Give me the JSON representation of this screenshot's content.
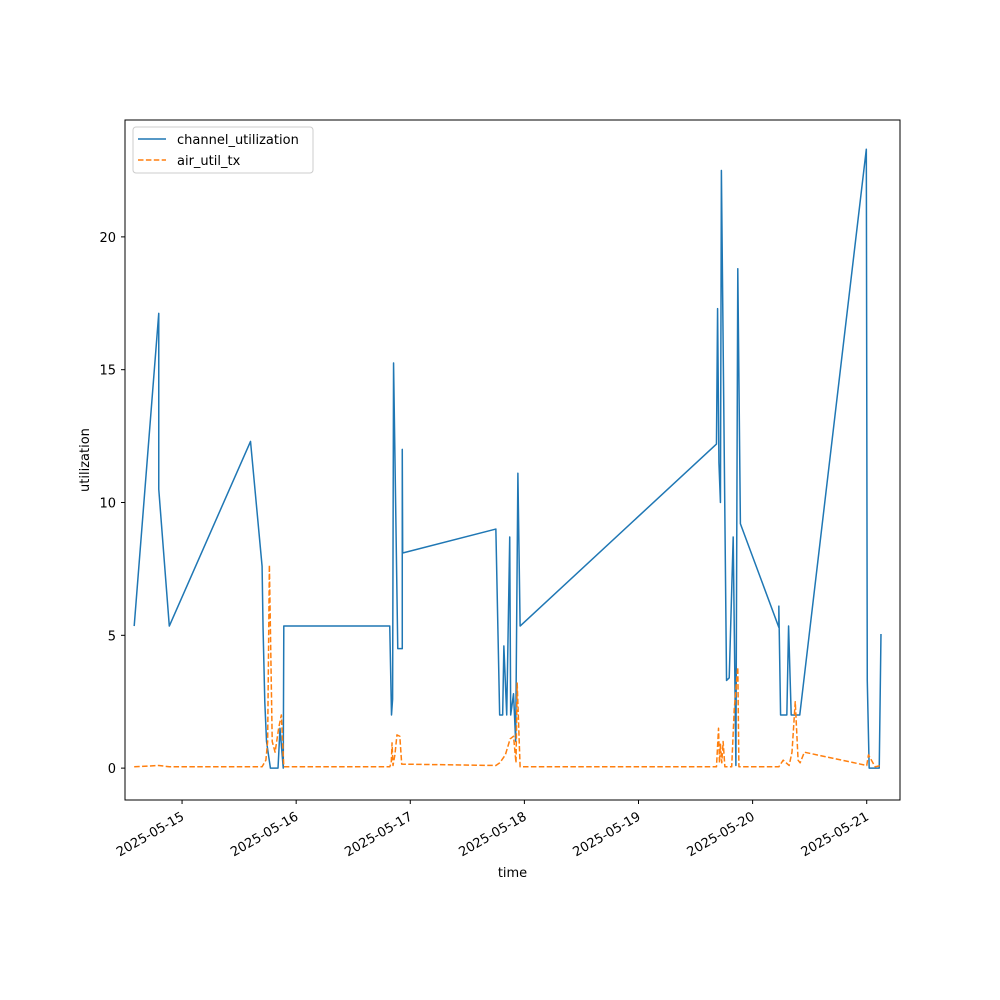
{
  "chart_data": {
    "type": "line",
    "xlabel": "time",
    "ylabel": "utilization",
    "x_type": "datetime",
    "xlim": [
      "2025-05-14T12:00",
      "2025-05-21T07:00"
    ],
    "ylim": [
      -1.2,
      24.4
    ],
    "x_ticks": [
      {
        "label": "2025-05-15",
        "value": "2025-05-15T00:00"
      },
      {
        "label": "2025-05-16",
        "value": "2025-05-16T00:00"
      },
      {
        "label": "2025-05-17",
        "value": "2025-05-17T00:00"
      },
      {
        "label": "2025-05-18",
        "value": "2025-05-18T00:00"
      },
      {
        "label": "2025-05-19",
        "value": "2025-05-19T00:00"
      },
      {
        "label": "2025-05-20",
        "value": "2025-05-20T00:00"
      },
      {
        "label": "2025-05-21",
        "value": "2025-05-21T00:00"
      }
    ],
    "y_ticks": [
      0,
      5,
      10,
      15,
      20
    ],
    "grid": false,
    "legend": "top-left",
    "series": [
      {
        "name": "channel_utilization",
        "color": "#1f77b4",
        "style": "solid",
        "points": [
          [
            "2025-05-14T13:56",
            5.35
          ],
          [
            "2025-05-14T19:06",
            17.12
          ],
          [
            "2025-05-14T19:06",
            10.5
          ],
          [
            "2025-05-14T21:19",
            5.35
          ],
          [
            "2025-05-15T14:24",
            12.3
          ],
          [
            "2025-05-15T16:50",
            7.6
          ],
          [
            "2025-05-15T17:02",
            5.3
          ],
          [
            "2025-05-15T17:24",
            2.5
          ],
          [
            "2025-05-15T17:46",
            1.0
          ],
          [
            "2025-05-15T18:35",
            0.0
          ],
          [
            "2025-05-15T20:11",
            0.0
          ],
          [
            "2025-05-15T20:36",
            1.5
          ],
          [
            "2025-05-15T21:17",
            0.0
          ],
          [
            "2025-05-15T21:24",
            5.35
          ],
          [
            "2025-05-16T19:41",
            5.35
          ],
          [
            "2025-05-16T20:03",
            2.0
          ],
          [
            "2025-05-16T20:17",
            2.6
          ],
          [
            "2025-05-16T20:29",
            15.25
          ],
          [
            "2025-05-16T21:22",
            4.5
          ],
          [
            "2025-05-16T22:19",
            4.5
          ],
          [
            "2025-05-16T22:19",
            12.0
          ],
          [
            "2025-05-16T22:24",
            8.1
          ],
          [
            "2025-05-17T18:00",
            9.0
          ],
          [
            "2025-05-17T18:48",
            2.0
          ],
          [
            "2025-05-17T19:26",
            2.0
          ],
          [
            "2025-05-17T19:41",
            4.6
          ],
          [
            "2025-05-17T20:17",
            2.0
          ],
          [
            "2025-05-17T20:55",
            8.7
          ],
          [
            "2025-05-17T21:07",
            2.0
          ],
          [
            "2025-05-17T21:43",
            2.8
          ],
          [
            "2025-05-17T22:10",
            1.0
          ],
          [
            "2025-05-17T22:38",
            11.1
          ],
          [
            "2025-05-17T23:06",
            5.35
          ],
          [
            "2025-05-19T16:24",
            12.2
          ],
          [
            "2025-05-19T16:38",
            17.3
          ],
          [
            "2025-05-19T16:55",
            11.5
          ],
          [
            "2025-05-19T17:14",
            10.0
          ],
          [
            "2025-05-19T17:26",
            22.5
          ],
          [
            "2025-05-19T18:31",
            3.3
          ],
          [
            "2025-05-19T19:05",
            3.4
          ],
          [
            "2025-05-19T19:55",
            8.7
          ],
          [
            "2025-05-19T20:29",
            0.1
          ],
          [
            "2025-05-19T20:53",
            18.8
          ],
          [
            "2025-05-19T21:26",
            9.2
          ],
          [
            "2025-05-20T05:31",
            5.3
          ],
          [
            "2025-05-20T05:31",
            6.1
          ],
          [
            "2025-05-20T05:53",
            2.0
          ],
          [
            "2025-05-20T07:12",
            2.0
          ],
          [
            "2025-05-20T07:34",
            5.35
          ],
          [
            "2025-05-20T08:07",
            2.0
          ],
          [
            "2025-05-20T09:55",
            2.0
          ],
          [
            "2025-05-20T23:55",
            23.3
          ],
          [
            "2025-05-21T00:07",
            3.3
          ],
          [
            "2025-05-21T00:31",
            0.0
          ],
          [
            "2025-05-21T02:38",
            0.0
          ],
          [
            "2025-05-21T03:00",
            5.05
          ]
        ]
      },
      {
        "name": "air_util_tx",
        "color": "#ff7f0e",
        "style": "dashed",
        "points": [
          [
            "2025-05-14T13:56",
            0.05
          ],
          [
            "2025-05-14T19:06",
            0.1
          ],
          [
            "2025-05-14T21:19",
            0.05
          ],
          [
            "2025-05-15T16:50",
            0.05
          ],
          [
            "2025-05-15T17:38",
            0.3
          ],
          [
            "2025-05-15T18:00",
            1.0
          ],
          [
            "2025-05-15T18:22",
            7.65
          ],
          [
            "2025-05-15T18:58",
            1.0
          ],
          [
            "2025-05-15T19:34",
            0.6
          ],
          [
            "2025-05-15T20:19",
            1.5
          ],
          [
            "2025-05-15T20:53",
            2.0
          ],
          [
            "2025-05-15T21:24",
            0.05
          ],
          [
            "2025-05-16T19:41",
            0.05
          ],
          [
            "2025-05-16T20:00",
            0.2
          ],
          [
            "2025-05-16T20:10",
            0.95
          ],
          [
            "2025-05-16T20:22",
            0.1
          ],
          [
            "2025-05-16T20:46",
            0.5
          ],
          [
            "2025-05-16T21:12",
            1.25
          ],
          [
            "2025-05-16T21:48",
            1.2
          ],
          [
            "2025-05-16T22:12",
            0.15
          ],
          [
            "2025-05-17T18:00",
            0.1
          ],
          [
            "2025-05-17T18:50",
            0.2
          ],
          [
            "2025-05-17T20:00",
            0.5
          ],
          [
            "2025-05-17T21:00",
            1.1
          ],
          [
            "2025-05-17T21:43",
            1.2
          ],
          [
            "2025-05-17T22:14",
            0.2
          ],
          [
            "2025-05-17T22:29",
            3.2
          ],
          [
            "2025-05-17T23:06",
            0.05
          ],
          [
            "2025-05-19T16:24",
            0.05
          ],
          [
            "2025-05-19T16:50",
            1.5
          ],
          [
            "2025-05-19T17:02",
            0.2
          ],
          [
            "2025-05-19T17:14",
            0.9
          ],
          [
            "2025-05-19T17:31",
            0.2
          ],
          [
            "2025-05-19T17:48",
            1.0
          ],
          [
            "2025-05-19T18:10",
            0.05
          ],
          [
            "2025-05-19T19:36",
            0.05
          ],
          [
            "2025-05-19T20:08",
            2.2
          ],
          [
            "2025-05-19T20:53",
            3.8
          ],
          [
            "2025-05-19T21:07",
            0.05
          ],
          [
            "2025-05-20T05:31",
            0.05
          ],
          [
            "2025-05-20T06:26",
            0.3
          ],
          [
            "2025-05-20T07:41",
            0.1
          ],
          [
            "2025-05-20T08:17",
            0.6
          ],
          [
            "2025-05-20T08:58",
            2.5
          ],
          [
            "2025-05-20T09:34",
            0.3
          ],
          [
            "2025-05-20T10:00",
            0.2
          ],
          [
            "2025-05-20T10:53",
            0.6
          ],
          [
            "2025-05-21T00:00",
            0.1
          ],
          [
            "2025-05-21T00:22",
            0.5
          ],
          [
            "2025-05-21T01:46",
            0.05
          ],
          [
            "2025-05-21T03:00",
            0.1
          ]
        ]
      }
    ]
  }
}
